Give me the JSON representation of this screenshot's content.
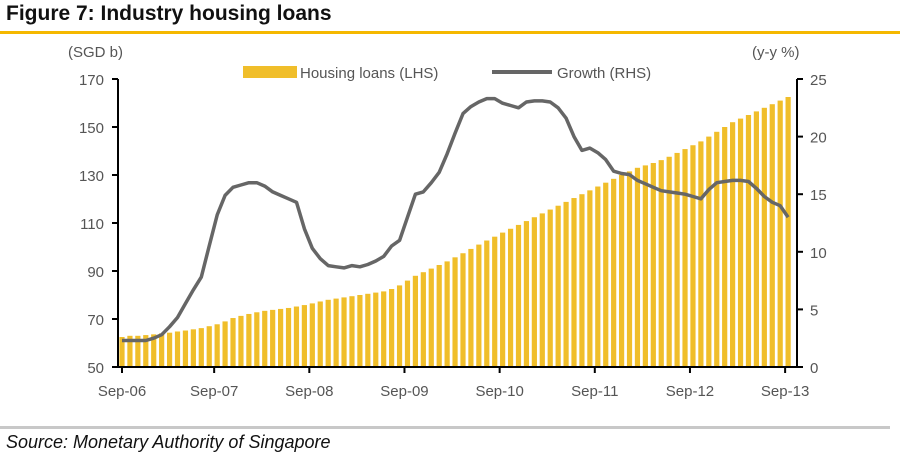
{
  "title": "Figure 7: Industry housing loans",
  "source": "Source: Monetary Authority of Singapore",
  "chart_data": {
    "type": "bar+line",
    "title": "Figure 7: Industry housing loans",
    "left_axis_label": "(SGD b)",
    "right_axis_label": "(y-y %)",
    "left_ylim": [
      50,
      170
    ],
    "left_ticks": [
      "50",
      "70",
      "90",
      "110",
      "130",
      "150",
      "170"
    ],
    "right_ylim": [
      0,
      25
    ],
    "right_ticks": [
      "0",
      "5",
      "10",
      "15",
      "20",
      "25"
    ],
    "x_ticks": [
      "Sep-06",
      "Sep-07",
      "Sep-08",
      "Sep-09",
      "Sep-10",
      "Sep-11",
      "Sep-12",
      "Sep-13"
    ],
    "x_frequency": "monthly, Sep-06 to Sep-13",
    "grid": false,
    "legend_position": "top",
    "colors": {
      "bars": "#F0BE2A",
      "line": "#666666",
      "accent": "#F5B800"
    },
    "series": [
      {
        "name": "Housing loans (LHS)",
        "type": "bar",
        "axis": "left",
        "values": [
          62.5,
          63,
          63,
          63.3,
          63.6,
          64,
          64.3,
          64.8,
          65.2,
          65.7,
          66.2,
          67,
          67.8,
          69,
          70.4,
          71.3,
          72.1,
          72.8,
          73.4,
          73.8,
          74.2,
          74.6,
          75.2,
          75.8,
          76.5,
          77.3,
          78,
          78.5,
          79,
          79.5,
          80,
          80.5,
          81,
          81.5,
          82.5,
          84,
          86,
          88,
          89.5,
          91,
          92.5,
          94,
          95.7,
          97.4,
          99.2,
          101,
          102.7,
          104.3,
          106,
          107.6,
          109.2,
          110.8,
          112.4,
          114,
          115.6,
          117.2,
          118.8,
          120.4,
          122,
          123.6,
          125.2,
          126.8,
          128.4,
          130,
          131.5,
          133,
          134,
          135,
          136.2,
          137.6,
          139.2,
          140.8,
          142.4,
          144,
          146,
          148,
          150,
          152,
          153.5,
          155,
          156.5,
          158,
          159.5,
          161,
          162.5
        ]
      },
      {
        "name": "Growth (RHS)",
        "type": "line",
        "axis": "right",
        "values": [
          2.3,
          2.3,
          2.3,
          2.3,
          2.5,
          2.8,
          3.5,
          4.3,
          5.5,
          6.7,
          7.8,
          10.5,
          13.2,
          14.9,
          15.6,
          15.8,
          16.0,
          16.0,
          15.7,
          15.2,
          14.9,
          14.6,
          14.3,
          12.0,
          10.3,
          9.4,
          8.8,
          8.7,
          8.6,
          8.8,
          8.7,
          8.9,
          9.2,
          9.6,
          10.5,
          11.0,
          13.0,
          15.0,
          15.2,
          16.0,
          16.9,
          18.5,
          20.3,
          22.0,
          22.6,
          23.0,
          23.3,
          23.3,
          22.9,
          22.7,
          22.5,
          23.0,
          23.1,
          23.1,
          23.0,
          22.5,
          21.6,
          20.0,
          18.8,
          19.0,
          18.6,
          18.0,
          17.0,
          16.8,
          16.7,
          16.2,
          15.9,
          15.6,
          15.3,
          15.2,
          15.1,
          15.0,
          14.8,
          14.6,
          15.4,
          16.0,
          16.1,
          16.2,
          16.2,
          16.1,
          15.5,
          14.8,
          14.3,
          14.0,
          13.0
        ]
      }
    ]
  }
}
